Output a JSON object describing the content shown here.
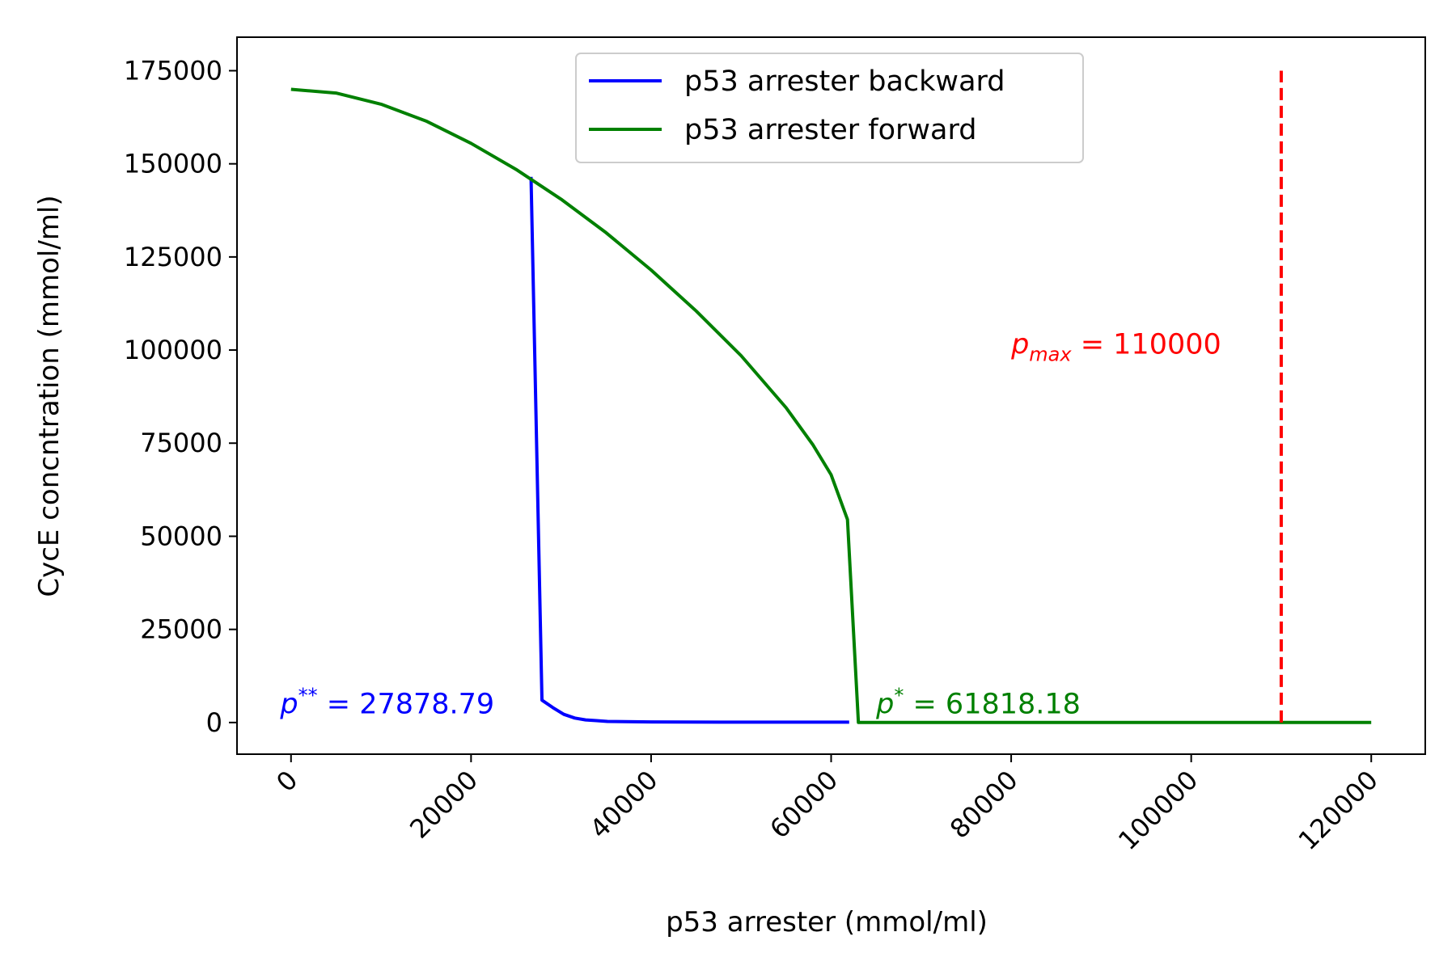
{
  "chart_data": {
    "type": "line",
    "xlabel": "p53 arrester (mmol/ml)",
    "ylabel": "CycE concntration (mmol/ml)",
    "xlim": [
      -6000,
      126000
    ],
    "ylim": [
      -8500,
      184000
    ],
    "x_ticks": [
      0,
      20000,
      40000,
      60000,
      80000,
      100000,
      120000
    ],
    "x_tick_labels": [
      "0",
      "20000",
      "40000",
      "60000",
      "80000",
      "100000",
      "120000"
    ],
    "y_ticks": [
      0,
      25000,
      50000,
      75000,
      100000,
      125000,
      150000,
      175000
    ],
    "y_tick_labels": [
      "0",
      "25000",
      "50000",
      "75000",
      "100000",
      "125000",
      "150000",
      "175000"
    ],
    "x_tick_rotation": 45,
    "grid": false,
    "legend_position": "top-center",
    "series": [
      {
        "name": "p53 arrester backward",
        "color": "#0000ff",
        "x": [
          26667,
          27879,
          29091,
          30303,
          31515,
          32727,
          33939,
          35152,
          40000,
          50000,
          60000,
          62000
        ],
        "y": [
          146500,
          6000,
          4000,
          2200,
          1200,
          700,
          500,
          300,
          150,
          100,
          100,
          100
        ]
      },
      {
        "name": "p53 arrester forward",
        "color": "#008000",
        "x": [
          0,
          5000,
          10000,
          15000,
          20000,
          25000,
          30000,
          35000,
          40000,
          45000,
          50000,
          55000,
          58000,
          60000,
          61818,
          63030,
          70000,
          80000,
          90000,
          100000,
          110000,
          120000
        ],
        "y": [
          170000,
          169000,
          166000,
          161500,
          155500,
          148500,
          140500,
          131500,
          121500,
          110500,
          98500,
          84500,
          74500,
          66500,
          54500,
          0,
          0,
          0,
          0,
          0,
          0,
          0
        ]
      }
    ],
    "vertical_line": {
      "x": 110000,
      "y_range": [
        0,
        175000
      ],
      "color": "#ff0000",
      "style": "dashed"
    },
    "annotations": [
      {
        "id": "p_double_star",
        "symbol": "p",
        "sup": "**",
        "rest": " = 27878.79",
        "color": "#0000ff",
        "x": -1200,
        "y": 2500,
        "anchor": "start"
      },
      {
        "id": "p_star",
        "symbol": "p",
        "sup": "*",
        "rest": " = 61818.18",
        "color": "#008000",
        "x": 65000,
        "y": 2500,
        "anchor": "start"
      },
      {
        "id": "p_max",
        "symbol": "p",
        "sub": "max",
        "rest": " = 110000",
        "color": "#ff0000",
        "x": 80000,
        "y": 99000,
        "anchor": "start"
      }
    ]
  }
}
